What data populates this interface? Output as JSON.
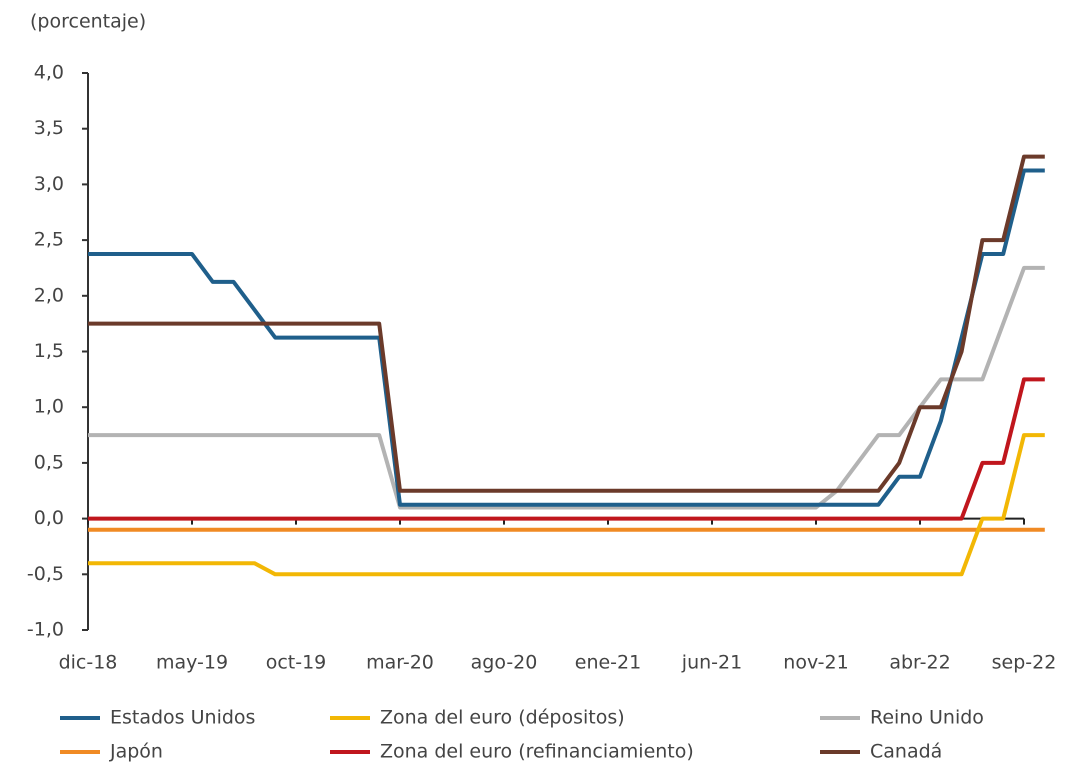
{
  "chart_data": {
    "type": "line",
    "y_label": "(porcentaje)",
    "categories": [
      "dic-18",
      null,
      null,
      null,
      null,
      "may-19",
      null,
      null,
      null,
      null,
      "oct-19",
      null,
      null,
      null,
      null,
      "mar-20",
      null,
      null,
      null,
      null,
      "ago-20",
      null,
      null,
      null,
      null,
      "ene-21",
      null,
      null,
      null,
      null,
      "jun-21",
      null,
      null,
      null,
      null,
      "nov-21",
      null,
      null,
      null,
      null,
      "abr-22",
      null,
      null,
      null,
      null,
      "sep-22",
      null
    ],
    "ylim": [
      -1,
      4
    ],
    "yticks": [
      {
        "value": -1,
        "label": "-1,0"
      },
      {
        "value": -0.5,
        "label": "-0,5"
      },
      {
        "value": 0,
        "label": "0,0"
      },
      {
        "value": 0.5,
        "label": "0,5"
      },
      {
        "value": 1,
        "label": "1,0"
      },
      {
        "value": 1.5,
        "label": "1,5"
      },
      {
        "value": 2,
        "label": "2,0"
      },
      {
        "value": 2.5,
        "label": "2,5"
      },
      {
        "value": 3,
        "label": "3,0"
      },
      {
        "value": 3.5,
        "label": "3,5"
      },
      {
        "value": 4,
        "label": "4,0"
      }
    ],
    "grid": false,
    "series": [
      {
        "name": "Estados Unidos",
        "color": "#1f5f8b",
        "values": [
          2.375,
          2.375,
          2.375,
          2.375,
          2.375,
          2.375,
          2.125,
          2.125,
          1.875,
          1.625,
          1.625,
          1.625,
          1.625,
          1.625,
          1.625,
          0.125,
          0.125,
          0.125,
          0.125,
          0.125,
          0.125,
          0.125,
          0.125,
          0.125,
          0.125,
          0.125,
          0.125,
          0.125,
          0.125,
          0.125,
          0.125,
          0.125,
          0.125,
          0.125,
          0.125,
          0.125,
          0.125,
          0.125,
          0.125,
          0.375,
          0.375,
          0.875,
          1.625,
          2.375,
          2.375,
          3.125,
          3.125
        ]
      },
      {
        "name": "Zona del euro (dépositos)",
        "color": "#f2b705",
        "values": [
          -0.4,
          -0.4,
          -0.4,
          -0.4,
          -0.4,
          -0.4,
          -0.4,
          -0.4,
          -0.4,
          -0.5,
          -0.5,
          -0.5,
          -0.5,
          -0.5,
          -0.5,
          -0.5,
          -0.5,
          -0.5,
          -0.5,
          -0.5,
          -0.5,
          -0.5,
          -0.5,
          -0.5,
          -0.5,
          -0.5,
          -0.5,
          -0.5,
          -0.5,
          -0.5,
          -0.5,
          -0.5,
          -0.5,
          -0.5,
          -0.5,
          -0.5,
          -0.5,
          -0.5,
          -0.5,
          -0.5,
          -0.5,
          -0.5,
          -0.5,
          0,
          0,
          0.75,
          0.75
        ]
      },
      {
        "name": "Reino Unido",
        "color": "#b3b3b3",
        "values": [
          0.75,
          0.75,
          0.75,
          0.75,
          0.75,
          0.75,
          0.75,
          0.75,
          0.75,
          0.75,
          0.75,
          0.75,
          0.75,
          0.75,
          0.75,
          0.1,
          0.1,
          0.1,
          0.1,
          0.1,
          0.1,
          0.1,
          0.1,
          0.1,
          0.1,
          0.1,
          0.1,
          0.1,
          0.1,
          0.1,
          0.1,
          0.1,
          0.1,
          0.1,
          0.1,
          0.1,
          0.25,
          0.5,
          0.75,
          0.75,
          1.0,
          1.25,
          1.25,
          1.25,
          1.75,
          2.25,
          2.25
        ]
      },
      {
        "name": "Japón",
        "color": "#f08a24",
        "values": [
          -0.1,
          -0.1,
          -0.1,
          -0.1,
          -0.1,
          -0.1,
          -0.1,
          -0.1,
          -0.1,
          -0.1,
          -0.1,
          -0.1,
          -0.1,
          -0.1,
          -0.1,
          -0.1,
          -0.1,
          -0.1,
          -0.1,
          -0.1,
          -0.1,
          -0.1,
          -0.1,
          -0.1,
          -0.1,
          -0.1,
          -0.1,
          -0.1,
          -0.1,
          -0.1,
          -0.1,
          -0.1,
          -0.1,
          -0.1,
          -0.1,
          -0.1,
          -0.1,
          -0.1,
          -0.1,
          -0.1,
          -0.1,
          -0.1,
          -0.1,
          -0.1,
          -0.1,
          -0.1,
          -0.1
        ]
      },
      {
        "name": "Zona del euro (refinanciamiento)",
        "color": "#c0161d",
        "values": [
          0,
          0,
          0,
          0,
          0,
          0,
          0,
          0,
          0,
          0,
          0,
          0,
          0,
          0,
          0,
          0,
          0,
          0,
          0,
          0,
          0,
          0,
          0,
          0,
          0,
          0,
          0,
          0,
          0,
          0,
          0,
          0,
          0,
          0,
          0,
          0,
          0,
          0,
          0,
          0,
          0,
          0,
          0,
          0.5,
          0.5,
          1.25,
          1.25
        ]
      },
      {
        "name": "Canadá",
        "color": "#6b3a2a",
        "values": [
          1.75,
          1.75,
          1.75,
          1.75,
          1.75,
          1.75,
          1.75,
          1.75,
          1.75,
          1.75,
          1.75,
          1.75,
          1.75,
          1.75,
          1.75,
          0.25,
          0.25,
          0.25,
          0.25,
          0.25,
          0.25,
          0.25,
          0.25,
          0.25,
          0.25,
          0.25,
          0.25,
          0.25,
          0.25,
          0.25,
          0.25,
          0.25,
          0.25,
          0.25,
          0.25,
          0.25,
          0.25,
          0.25,
          0.25,
          0.5,
          1.0,
          1.0,
          1.5,
          2.5,
          2.5,
          3.25,
          3.25
        ]
      }
    ]
  }
}
